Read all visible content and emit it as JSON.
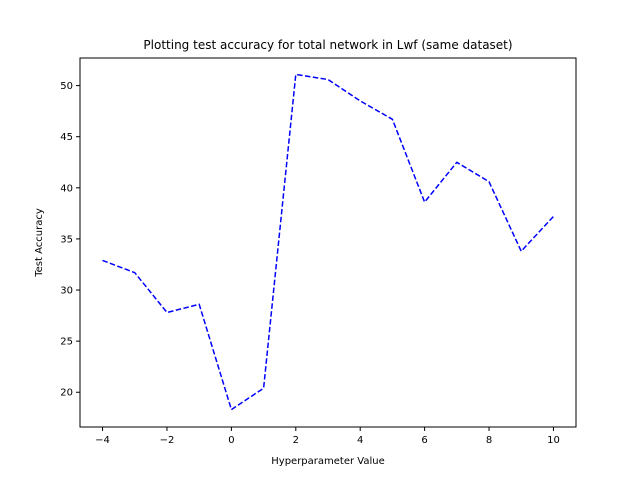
{
  "chart_data": {
    "type": "line",
    "title": "Plotting test accuracy for total network in Lwf (same dataset)",
    "xlabel": "Hyperparameter Value",
    "ylabel": "Test Accuracy",
    "xlim": [
      -4.7,
      10.7
    ],
    "ylim": [
      16.6,
      52.7
    ],
    "xticks": [
      -4,
      -2,
      0,
      2,
      4,
      6,
      8,
      10
    ],
    "yticks": [
      20,
      25,
      30,
      35,
      40,
      45,
      50
    ],
    "grid": false,
    "series": [
      {
        "color": "#0000ff",
        "line_style": "dashed",
        "x": [
          -4,
          -3,
          -2,
          -1,
          0,
          1,
          2,
          3,
          4,
          5,
          6,
          7,
          8,
          9,
          10
        ],
        "y": [
          32.9,
          31.7,
          27.8,
          28.6,
          18.3,
          20.4,
          51.1,
          50.6,
          48.5,
          46.7,
          38.6,
          42.5,
          40.6,
          33.8,
          37.2
        ]
      }
    ]
  }
}
